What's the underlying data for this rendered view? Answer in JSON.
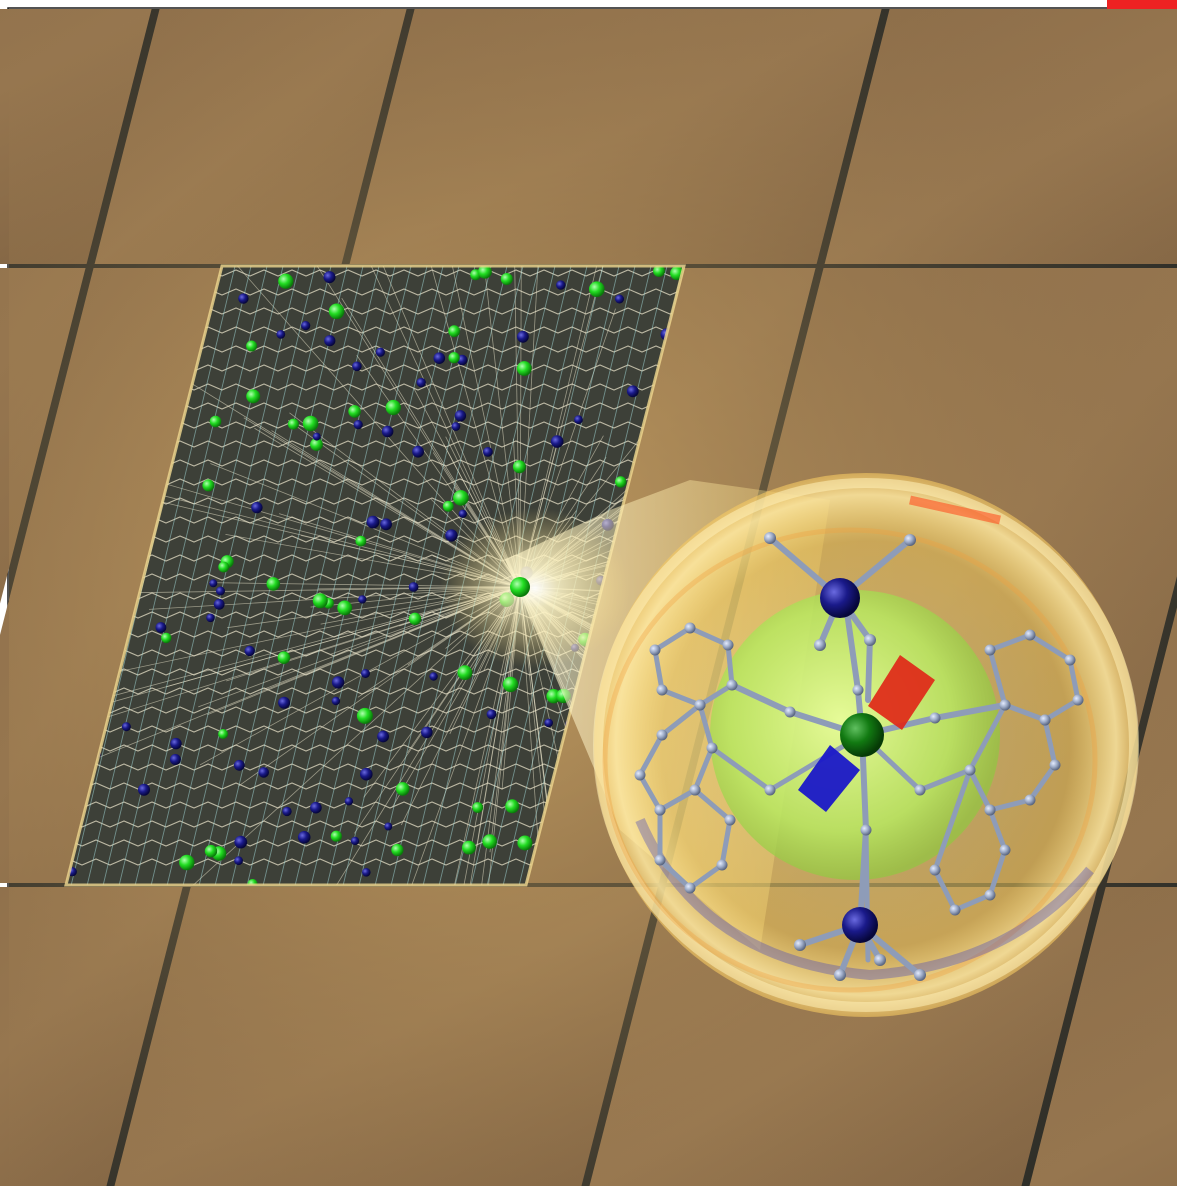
{
  "colors": {
    "background": "#ffffff",
    "frame_border": "#1a1a1a",
    "tile_surface": "#8a6c48",
    "tile_surface_light": "#9a7a52",
    "tile_gap": "#2e2e28",
    "lattice_backdrop": "#3d4038",
    "framework_lines": "#e8e2c8",
    "framework_bonds": "#a8e0e0",
    "metal_atom_green": "#22dd22",
    "ligand_atom_blue": "#1a1a8a",
    "molecule_bonds": "#8e9cb8",
    "magnetic_axis_red": "#e02818",
    "magnetic_axis_blue": "#1a18c8",
    "bubble_glow": "#ffd860",
    "inner_sphere_green": "#b8e860",
    "corner_mark": "#ee2222"
  },
  "scene": {
    "description_icons": [
      "crystal-lattice-window",
      "magnifying-bubble",
      "single-molecule-magnet",
      "magnetic-axis-icon"
    ]
  }
}
